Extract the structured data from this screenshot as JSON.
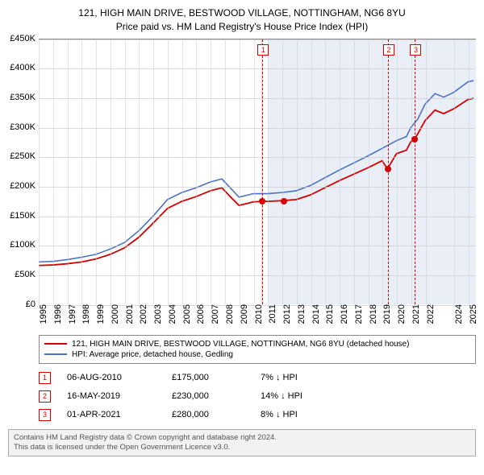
{
  "title": {
    "line1": "121, HIGH MAIN DRIVE, BESTWOOD VILLAGE, NOTTINGHAM, NG6 8YU",
    "line2": "Price paid vs. HM Land Registry's House Price Index (HPI)",
    "fontsize": 12,
    "color": "#000000"
  },
  "chart": {
    "type": "line",
    "background_color": "#ffffff",
    "grid_color": "#cccccc",
    "axis_color": "#888888",
    "ylim": [
      0,
      450000
    ],
    "ytick_step": 50000,
    "yticks": [
      {
        "v": 0,
        "label": "£0"
      },
      {
        "v": 50000,
        "label": "£50K"
      },
      {
        "v": 100000,
        "label": "£100K"
      },
      {
        "v": 150000,
        "label": "£150K"
      },
      {
        "v": 200000,
        "label": "£200K"
      },
      {
        "v": 250000,
        "label": "£250K"
      },
      {
        "v": 300000,
        "label": "£300K"
      },
      {
        "v": 350000,
        "label": "£350K"
      },
      {
        "v": 400000,
        "label": "£400K"
      },
      {
        "v": 450000,
        "label": "£450K"
      }
    ],
    "xlim": [
      1995,
      2025.5
    ],
    "xticks": [
      1995,
      1996,
      1997,
      1998,
      1999,
      2000,
      2001,
      2002,
      2003,
      2004,
      2005,
      2006,
      2007,
      2008,
      2009,
      2010,
      2011,
      2012,
      2013,
      2014,
      2015,
      2016,
      2017,
      2018,
      2019,
      2020,
      2021,
      2022,
      2024,
      2025
    ],
    "bands": [
      {
        "from": 2010.55,
        "to": 2010.65,
        "color": "#ffdcdc"
      },
      {
        "from": 2019.3,
        "to": 2019.45,
        "color": "#ffdcdc"
      },
      {
        "from": 2021.2,
        "to": 2021.35,
        "color": "#ffdcdc"
      },
      {
        "from": 2011,
        "to": 2025.5,
        "color": "#e9eef7"
      }
    ],
    "vlines": [
      {
        "x": 2010.6,
        "color": "#d40000"
      },
      {
        "x": 2019.37,
        "color": "#d40000"
      },
      {
        "x": 2021.25,
        "color": "#d40000"
      }
    ],
    "markers": [
      {
        "n": "1",
        "x": 2010.6,
        "color": "#d40000"
      },
      {
        "n": "2",
        "x": 2019.37,
        "color": "#d40000"
      },
      {
        "n": "3",
        "x": 2021.25,
        "color": "#d40000"
      }
    ],
    "series": [
      {
        "name": "hpi",
        "label": "HPI: Average price, detached house, Gedling",
        "color": "#4a72c4",
        "width": 1.6,
        "data": [
          [
            1995,
            72000
          ],
          [
            1996,
            73000
          ],
          [
            1997,
            76000
          ],
          [
            1998,
            80000
          ],
          [
            1999,
            85000
          ],
          [
            2000,
            94000
          ],
          [
            2001,
            105000
          ],
          [
            2002,
            125000
          ],
          [
            2003,
            150000
          ],
          [
            2004,
            178000
          ],
          [
            2005,
            190000
          ],
          [
            2006,
            198000
          ],
          [
            2007,
            208000
          ],
          [
            2007.8,
            213000
          ],
          [
            2008.5,
            195000
          ],
          [
            2009,
            182000
          ],
          [
            2010,
            188000
          ],
          [
            2011,
            188000
          ],
          [
            2012,
            190000
          ],
          [
            2013,
            193000
          ],
          [
            2014,
            202000
          ],
          [
            2015,
            215000
          ],
          [
            2016,
            228000
          ],
          [
            2017,
            240000
          ],
          [
            2018,
            252000
          ],
          [
            2019,
            265000
          ],
          [
            2020,
            278000
          ],
          [
            2020.7,
            285000
          ],
          [
            2021,
            300000
          ],
          [
            2021.5,
            315000
          ],
          [
            2022,
            340000
          ],
          [
            2022.7,
            358000
          ],
          [
            2023.3,
            352000
          ],
          [
            2024,
            360000
          ],
          [
            2025,
            378000
          ],
          [
            2025.4,
            380000
          ]
        ]
      },
      {
        "name": "property",
        "label": "121, HIGH MAIN DRIVE, BESTWOOD VILLAGE, NOTTINGHAM, NG6 8YU (detached house)",
        "color": "#d40000",
        "width": 1.8,
        "data": [
          [
            1995,
            66000
          ],
          [
            1996,
            67000
          ],
          [
            1997,
            69000
          ],
          [
            1998,
            72000
          ],
          [
            1999,
            77000
          ],
          [
            2000,
            85000
          ],
          [
            2001,
            96000
          ],
          [
            2002,
            114000
          ],
          [
            2003,
            138000
          ],
          [
            2004,
            163000
          ],
          [
            2005,
            175000
          ],
          [
            2006,
            183000
          ],
          [
            2007,
            193000
          ],
          [
            2007.8,
            198000
          ],
          [
            2008.5,
            180000
          ],
          [
            2009,
            168000
          ],
          [
            2010,
            174000
          ],
          [
            2010.6,
            175000
          ],
          [
            2011,
            175000
          ],
          [
            2012,
            176000
          ],
          [
            2013,
            178000
          ],
          [
            2014,
            186000
          ],
          [
            2015,
            198000
          ],
          [
            2016,
            210000
          ],
          [
            2017,
            221000
          ],
          [
            2018,
            232000
          ],
          [
            2019,
            244000
          ],
          [
            2019.37,
            230000
          ],
          [
            2020,
            256000
          ],
          [
            2020.7,
            262000
          ],
          [
            2021,
            276000
          ],
          [
            2021.25,
            280000
          ],
          [
            2021.5,
            290000
          ],
          [
            2022,
            312000
          ],
          [
            2022.7,
            330000
          ],
          [
            2023.3,
            324000
          ],
          [
            2024,
            332000
          ],
          [
            2025,
            348000
          ],
          [
            2025.4,
            350000
          ]
        ]
      }
    ],
    "points": [
      {
        "x": 2010.6,
        "y": 175000,
        "color": "#d40000"
      },
      {
        "x": 2012.1,
        "y": 176000,
        "color": "#d40000"
      },
      {
        "x": 2019.37,
        "y": 230000,
        "color": "#d40000"
      },
      {
        "x": 2021.25,
        "y": 280000,
        "color": "#d40000"
      }
    ]
  },
  "legend": {
    "border_color": "#888888",
    "rows": [
      {
        "color": "#d40000",
        "label": "121, HIGH MAIN DRIVE, BESTWOOD VILLAGE, NOTTINGHAM, NG6 8YU (detached house)"
      },
      {
        "color": "#4a72c4",
        "label": "HPI: Average price, detached house, Gedling"
      }
    ]
  },
  "sales": [
    {
      "n": "1",
      "date": "06-AUG-2010",
      "price": "£175,000",
      "diff": "7% ↓ HPI",
      "color": "#d40000"
    },
    {
      "n": "2",
      "date": "16-MAY-2019",
      "price": "£230,000",
      "diff": "14% ↓ HPI",
      "color": "#d40000"
    },
    {
      "n": "3",
      "date": "01-APR-2021",
      "price": "£280,000",
      "diff": "8% ↓ HPI",
      "color": "#d40000"
    }
  ],
  "footer": {
    "line1": "Contains HM Land Registry data © Crown copyright and database right 2024.",
    "line2": "This data is licensed under the Open Government Licence v3.0.",
    "background": "#f2f2f2",
    "border": "#aaaaaa",
    "color": "#555555"
  }
}
